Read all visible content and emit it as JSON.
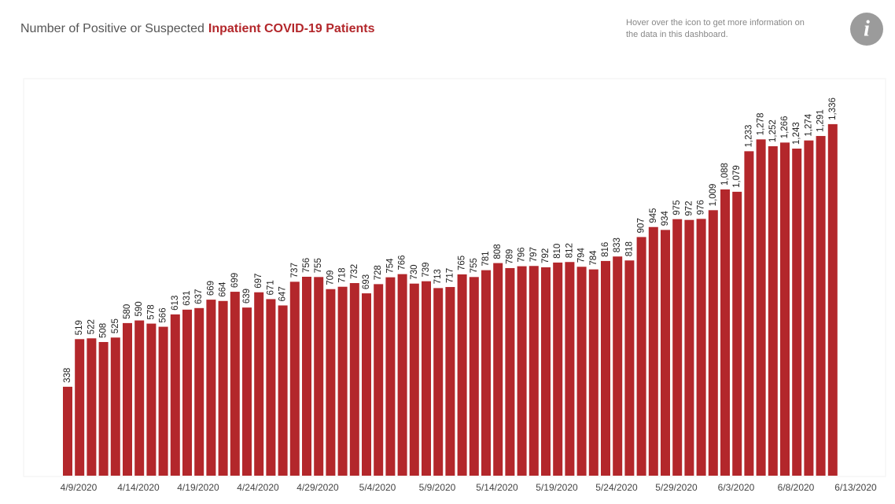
{
  "chart_data": {
    "type": "bar",
    "title": "Number of Positive or Suspected",
    "title_highlight": "Inpatient COVID-19 Patients",
    "info_text": [
      "Hover over the icon to get more information on",
      "the data in this dashboard."
    ],
    "color": "#b3272b",
    "ylim": [
      0,
      1500
    ],
    "categories": [
      "4/9/2020",
      null,
      null,
      null,
      null,
      "4/14/2020",
      null,
      null,
      null,
      null,
      "4/19/2020",
      null,
      null,
      null,
      null,
      "4/24/2020",
      null,
      null,
      null,
      null,
      "4/29/2020",
      null,
      null,
      null,
      null,
      "5/4/2020",
      null,
      null,
      null,
      null,
      "5/9/2020",
      null,
      null,
      null,
      null,
      "5/14/2020",
      null,
      null,
      null,
      null,
      "5/19/2020",
      null,
      null,
      null,
      null,
      "5/24/2020",
      null,
      null,
      null,
      null,
      "5/29/2020",
      null,
      null,
      null,
      null,
      "6/3/2020",
      null,
      null,
      null,
      null,
      "6/8/2020",
      null,
      null,
      null,
      null,
      "6/13/2020"
    ],
    "values": [
      338,
      519,
      522,
      508,
      525,
      580,
      590,
      578,
      566,
      613,
      631,
      637,
      669,
      664,
      699,
      639,
      697,
      671,
      647,
      737,
      756,
      755,
      709,
      718,
      732,
      693,
      728,
      754,
      766,
      730,
      739,
      713,
      717,
      765,
      755,
      781,
      808,
      789,
      796,
      797,
      792,
      810,
      812,
      794,
      784,
      816,
      833,
      818,
      907,
      945,
      934,
      975,
      972,
      976,
      1009,
      1088,
      1079,
      1233,
      1278,
      1252,
      1266,
      1243,
      1274,
      1291,
      1336,
      null
    ],
    "value_labels": [
      "338",
      "519",
      "522",
      "508",
      "525",
      "580",
      "590",
      "578",
      "566",
      "613",
      "631",
      "637",
      "669",
      "664",
      "699",
      "639",
      "697",
      "671",
      "647",
      "737",
      "756",
      "755",
      "709",
      "718",
      "732",
      "693",
      "728",
      "754",
      "766",
      "730",
      "739",
      "713",
      "717",
      "765",
      "755",
      "781",
      "808",
      "789",
      "796",
      "797",
      "792",
      "810",
      "812",
      "794",
      "784",
      "816",
      "833",
      "818",
      "907",
      "945",
      "934",
      "975",
      "972",
      "976",
      "1,009",
      "1,088",
      "1,079",
      "1,233",
      "1,278",
      "1,252",
      "1,266",
      "1,243",
      "1,274",
      "1,291",
      "1,336",
      null
    ]
  }
}
